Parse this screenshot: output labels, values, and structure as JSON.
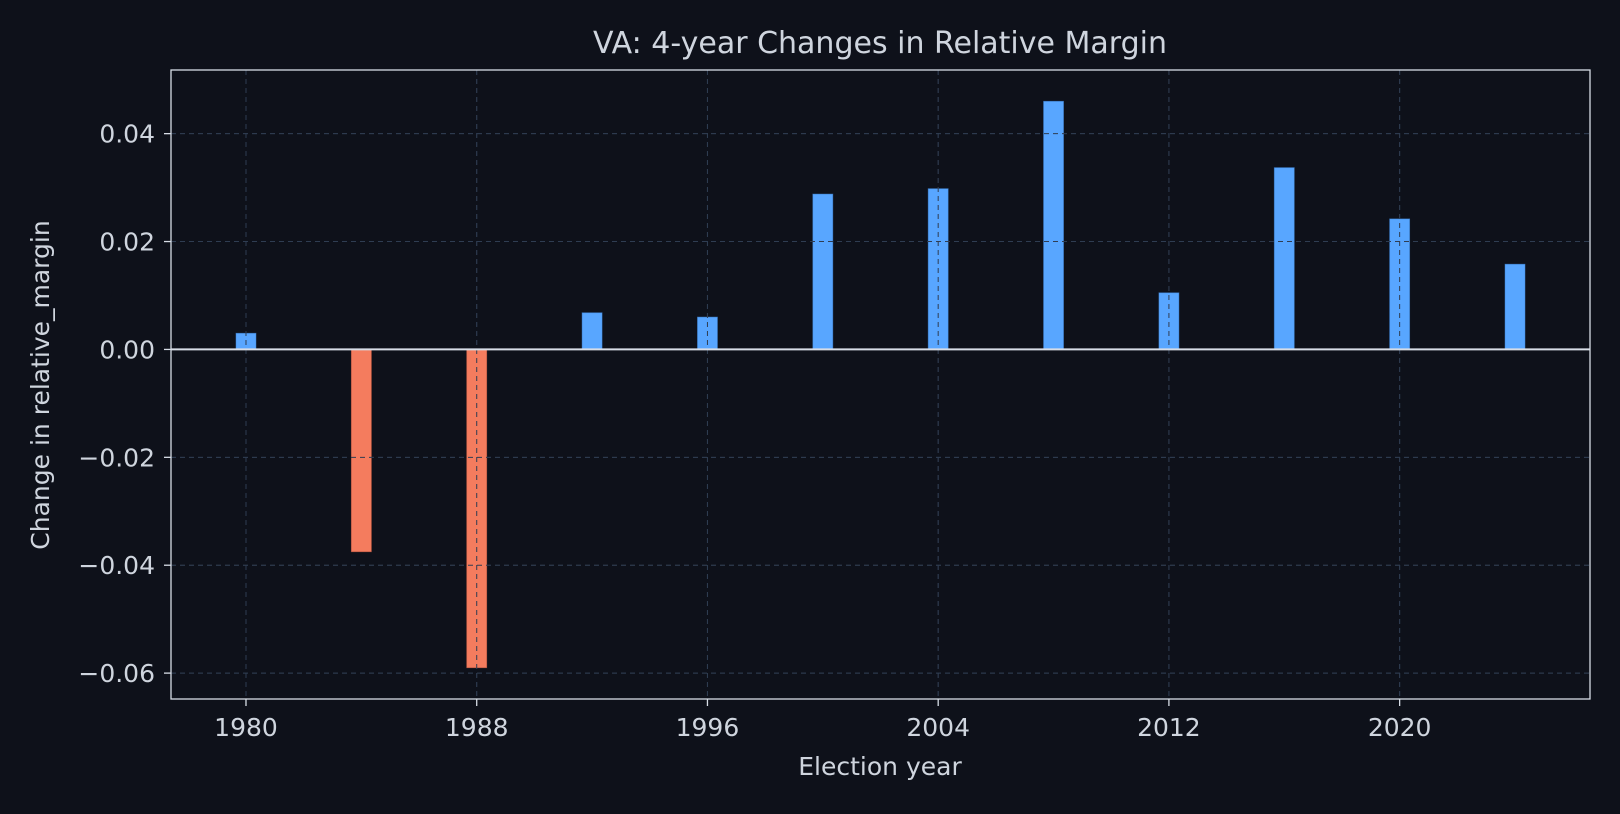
{
  "chart_data": {
    "type": "bar",
    "title": "VA: 4-year Changes in Relative Margin",
    "xlabel": "Election year",
    "ylabel": "Change in relative_margin",
    "x": [
      1980,
      1984,
      1988,
      1992,
      1996,
      2000,
      2004,
      2008,
      2012,
      2016,
      2020,
      2024
    ],
    "values": [
      0.003,
      -0.0375,
      -0.059,
      0.0068,
      0.006,
      0.0288,
      0.0298,
      0.046,
      0.0105,
      0.0337,
      0.0242,
      0.0158
    ],
    "xlim": [
      1977.4,
      2026.6
    ],
    "ylim": [
      -0.0648,
      0.0518
    ],
    "xticks": [
      1980,
      1988,
      1996,
      2004,
      2012,
      2020
    ],
    "xtick_labels": [
      "1980",
      "1988",
      "1996",
      "2004",
      "2012",
      "2020"
    ],
    "yticks": [
      0.04,
      0.02,
      0.0,
      -0.02,
      -0.04,
      -0.06
    ],
    "ytick_labels": [
      "0.04",
      "0.02",
      "0.00",
      "−0.02",
      "−0.04",
      "−0.06"
    ],
    "grid": true,
    "colors": {
      "background": "#0e111a",
      "positive": "#58a6ff",
      "negative": "#f47c5e",
      "axis": "#d7dde6",
      "text": "#cfd5de",
      "grid": "#2a303c"
    }
  }
}
